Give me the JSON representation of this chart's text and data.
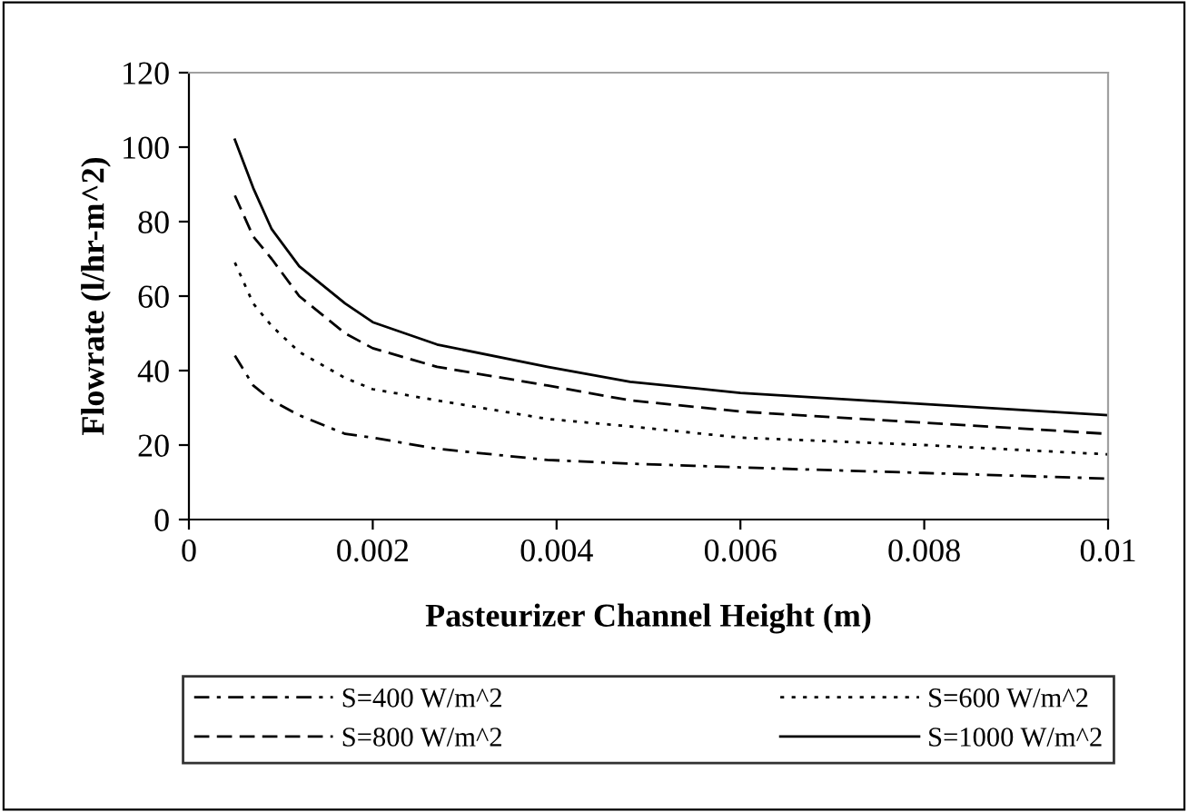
{
  "chart_data": {
    "type": "line",
    "xlabel": "Pasteurizer Channel Height (m)",
    "ylabel": "Flowrate (l/hr-m^2)",
    "x": [
      0.0005,
      0.0007,
      0.0009,
      0.0012,
      0.0017,
      0.002,
      0.0027,
      0.0039,
      0.0048,
      0.006,
      0.008,
      0.01
    ],
    "series": [
      {
        "name": "S=400 W/m^2",
        "color": "#000000",
        "line_style": "dashdot",
        "values": [
          44,
          36,
          32,
          28,
          23,
          22,
          19,
          16,
          15,
          14,
          12.5,
          11
        ]
      },
      {
        "name": "S=600 W/m^2",
        "color": "#000000",
        "line_style": "dotted",
        "values": [
          69,
          58,
          52,
          45,
          38,
          35,
          32,
          27,
          25,
          22,
          20,
          17.5
        ]
      },
      {
        "name": "S=800 W/m^2",
        "color": "#000000",
        "line_style": "dashed",
        "values": [
          87,
          76,
          70,
          60,
          50,
          46,
          41,
          36,
          32,
          29,
          26,
          23
        ]
      },
      {
        "name": "S=1000 W/m^2",
        "color": "#000000",
        "line_style": "solid",
        "values": [
          102,
          89,
          78,
          68,
          58,
          53,
          47,
          41,
          37,
          34,
          31,
          28
        ]
      }
    ],
    "xlim": [
      0,
      0.01
    ],
    "xticks": [
      0,
      0.002,
      0.004,
      0.006,
      0.008,
      0.01
    ],
    "ylim": [
      0,
      120
    ],
    "yticks": [
      0,
      20,
      40,
      60,
      80,
      100,
      120
    ],
    "grid": false,
    "legend": "bottom",
    "marker": "none"
  }
}
